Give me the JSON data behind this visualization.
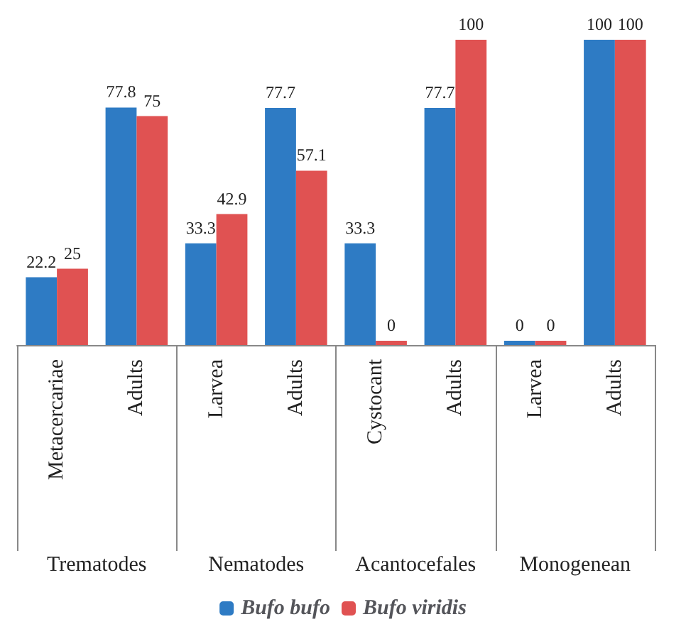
{
  "chart_data": {
    "type": "bar",
    "categories": [
      "Metacercariae",
      "Adults",
      "Larvea",
      "Adults",
      "Cystocant",
      "Adults",
      "Larvea",
      "Adults"
    ],
    "series": [
      {
        "name": "Bufo bufo",
        "color": "#2e7bc4",
        "values": [
          22.2,
          77.8,
          33.3,
          77.7,
          33.3,
          77.7,
          0,
          100
        ]
      },
      {
        "name": "Bufo viridis",
        "color": "#e05252",
        "values": [
          25,
          75,
          42.9,
          57.1,
          0,
          100,
          0,
          100
        ]
      }
    ],
    "data_labels": true,
    "legend": "bottom",
    "grid": false,
    "annotations": [
      "Trematodes",
      "Nematodes",
      "Acantocefales",
      "Monogenean"
    ]
  }
}
